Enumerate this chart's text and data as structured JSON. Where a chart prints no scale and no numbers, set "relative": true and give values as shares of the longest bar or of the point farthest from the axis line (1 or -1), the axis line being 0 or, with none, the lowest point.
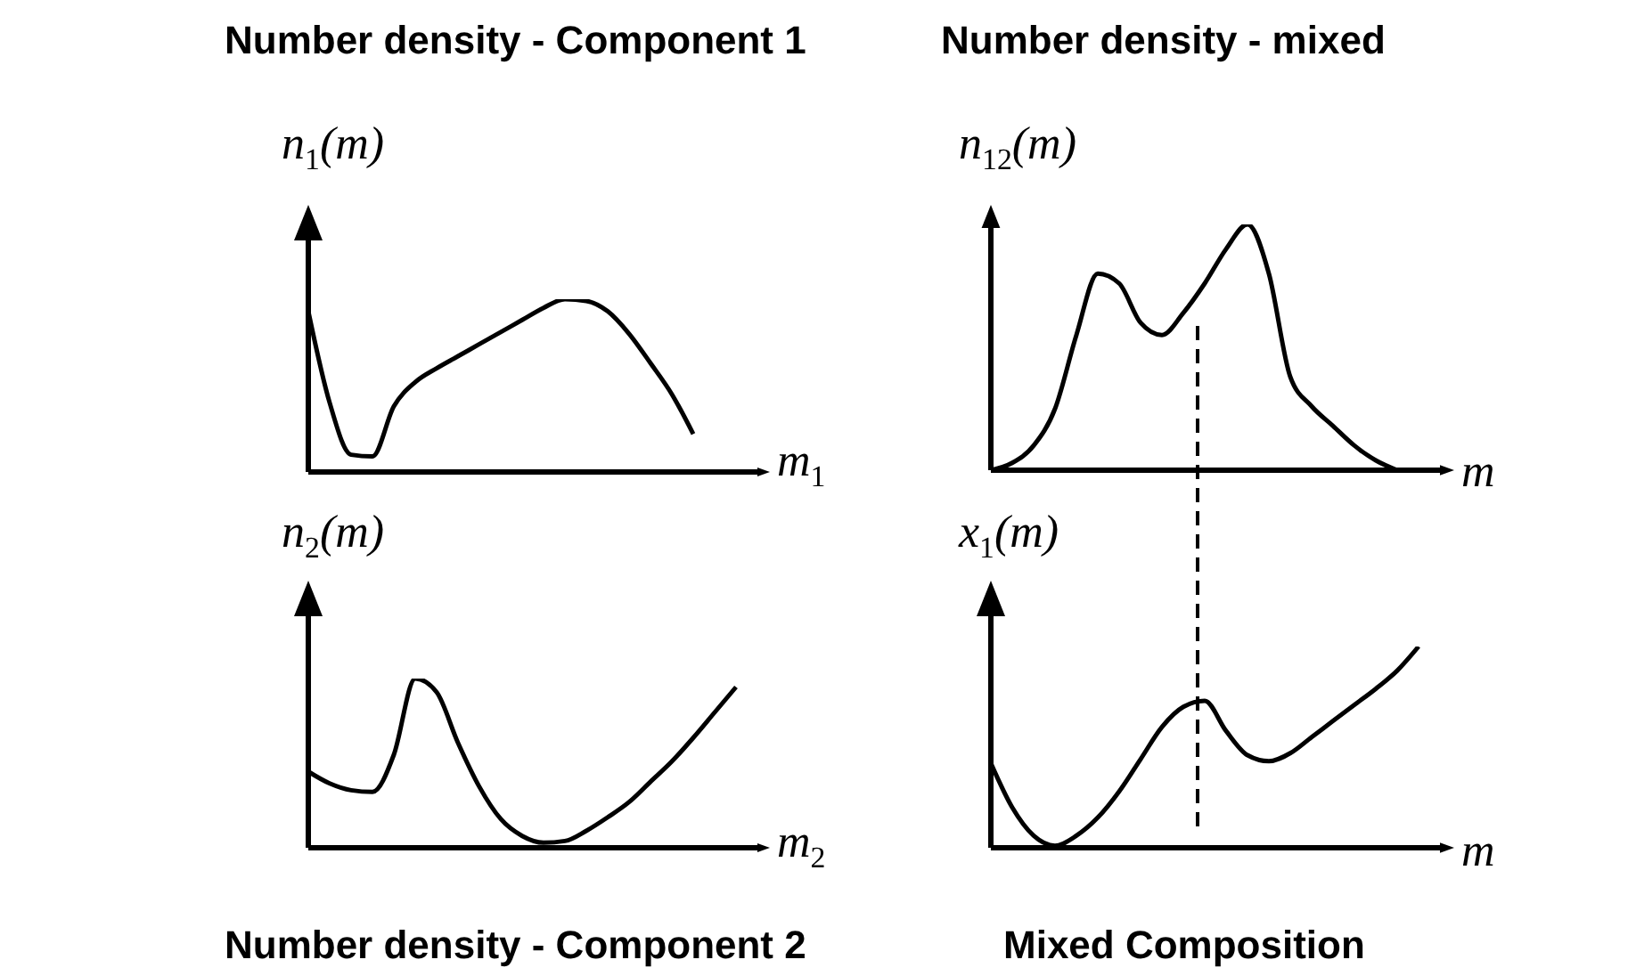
{
  "chart_data": [
    {
      "type": "line",
      "title": "Number density - Component 1",
      "xlabel": "m$_{1}$",
      "ylabel": "n$_{1}$(m)",
      "relative": true,
      "marker": "none",
      "line_style": "solid",
      "categories": [
        null,
        null,
        null,
        null,
        null,
        null,
        null,
        null,
        null,
        null,
        null,
        null,
        null,
        null,
        null,
        null,
        null,
        null,
        null,
        null,
        null,
        null
      ],
      "series": [
        {
          "color": "#000000",
          "values": [
            0.93,
            0.4,
            0.1,
            0.09,
            0.38,
            0.52,
            0.6,
            0.67,
            0.74,
            0.81,
            0.88,
            0.95,
            1.0,
            0.99,
            0.93,
            0.8,
            0.63,
            0.45,
            0.22,
            null,
            null,
            null
          ]
        }
      ]
    },
    {
      "type": "line",
      "title": "Number density - mixed",
      "xlabel": "m",
      "ylabel": "n$_{12}$(m)",
      "relative": true,
      "marker": "none",
      "line_style": "solid",
      "categories": [
        null,
        null,
        null,
        null,
        null,
        null,
        null,
        null,
        null,
        null,
        null,
        null,
        null,
        null,
        null,
        null,
        null,
        null,
        null,
        null,
        null,
        null
      ],
      "series": [
        {
          "color": "#000000",
          "values": [
            0,
            0.03,
            0.1,
            0.25,
            0.55,
            0.8,
            0.76,
            0.6,
            0.55,
            0.64,
            0.76,
            0.9,
            1.0,
            0.8,
            0.38,
            0.26,
            0.18,
            0.1,
            0.04,
            0,
            null,
            null
          ]
        }
      ]
    },
    {
      "type": "line",
      "title": "Number density - Component 2",
      "xlabel": "m$_{2}$",
      "ylabel": "n$_{2}$(m)",
      "relative": true,
      "marker": "none",
      "line_style": "solid",
      "categories": [
        null,
        null,
        null,
        null,
        null,
        null,
        null,
        null,
        null,
        null,
        null,
        null,
        null,
        null,
        null,
        null,
        null,
        null,
        null,
        null,
        null,
        null
      ],
      "series": [
        {
          "color": "#000000",
          "values": [
            0.45,
            0.38,
            0.34,
            0.33,
            0.55,
            1.0,
            0.92,
            0.62,
            0.36,
            0.17,
            0.07,
            0.03,
            0.04,
            0.1,
            0.18,
            0.27,
            0.39,
            0.51,
            0.65,
            0.8,
            0.95,
            null
          ]
        }
      ]
    },
    {
      "type": "line",
      "title": "Mixed Composition",
      "xlabel": "m",
      "ylabel": "x$_{1}$(m)",
      "relative": true,
      "marker": "none",
      "line_style": "solid",
      "categories": [
        null,
        null,
        null,
        null,
        null,
        null,
        null,
        null,
        null,
        null,
        null,
        null,
        null,
        null,
        null,
        null,
        null,
        null,
        null,
        null,
        null,
        null
      ],
      "series": [
        {
          "color": "#000000",
          "values": [
            0.42,
            0.2,
            0.06,
            0.01,
            0.06,
            0.15,
            0.28,
            0.44,
            0.6,
            0.7,
            0.73,
            0.58,
            0.46,
            0.43,
            0.47,
            0.55,
            0.63,
            0.71,
            0.79,
            0.88,
            1.0,
            null
          ]
        }
      ]
    }
  ]
}
